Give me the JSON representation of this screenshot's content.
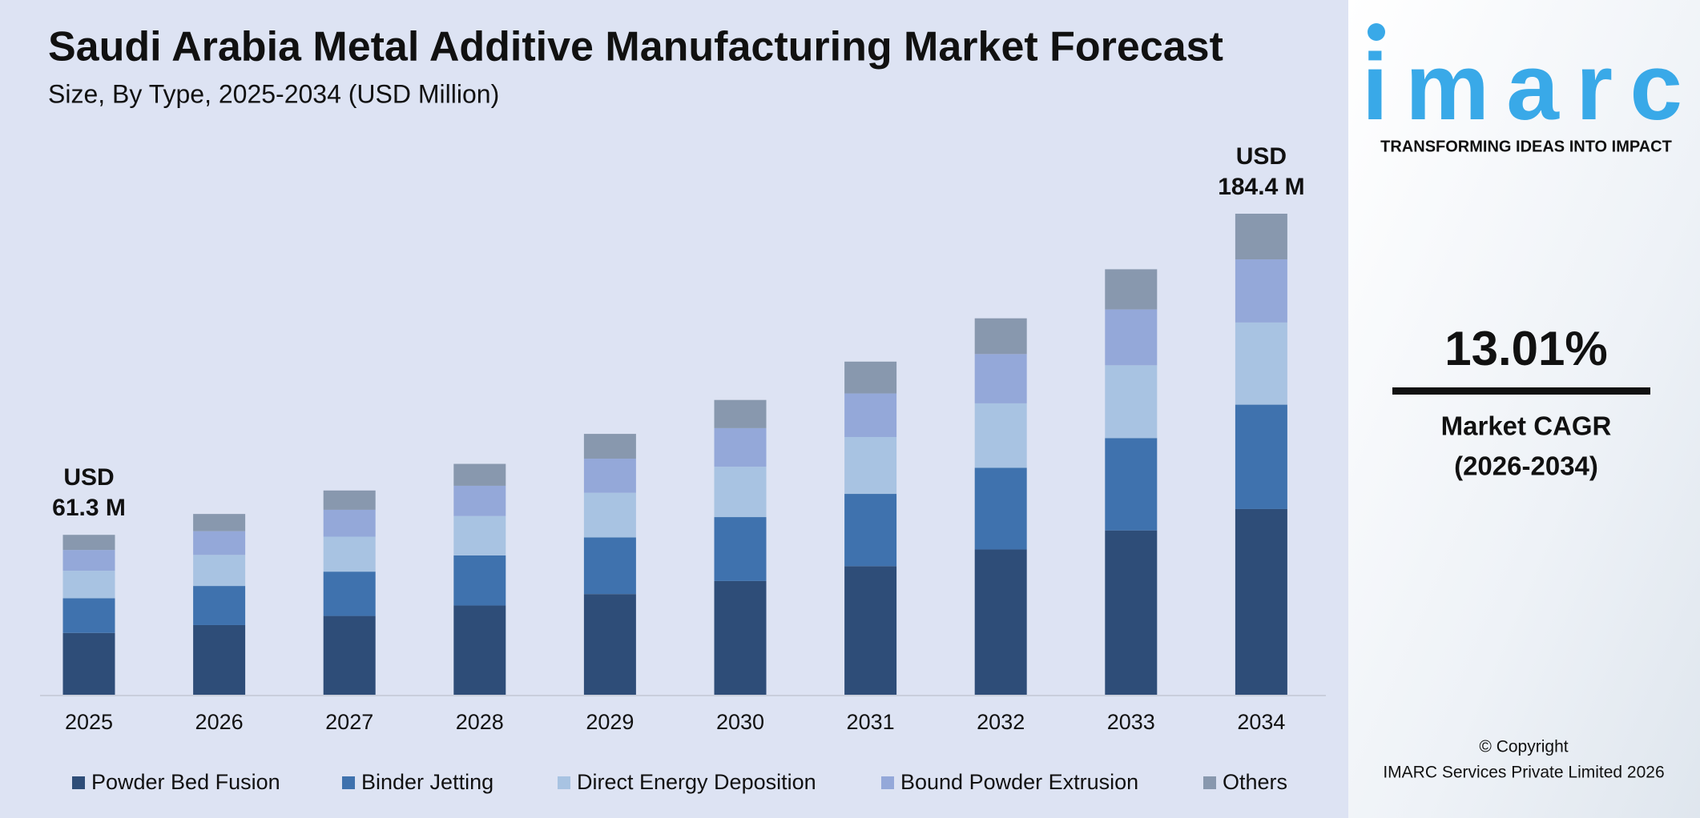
{
  "chart_data": {
    "type": "stacked_bar",
    "title": "Saudi Arabia Metal Additive Manufacturing Market Forecast",
    "subtitle": "Size, By Type, 2025-2034 (USD Million)",
    "categories": [
      "2025",
      "2026",
      "2027",
      "2028",
      "2029",
      "2030",
      "2031",
      "2032",
      "2033",
      "2034"
    ],
    "series": [
      {
        "name": "Powder Bed Fusion",
        "color": "#2e4d78",
        "values": [
          23.7,
          26.7,
          30.2,
          34.2,
          38.6,
          43.6,
          49.3,
          55.7,
          63.0,
          71.2
        ]
      },
      {
        "name": "Binder Jetting",
        "color": "#3f72ae",
        "values": [
          13.3,
          15.0,
          17.0,
          19.2,
          21.7,
          24.5,
          27.7,
          31.3,
          35.4,
          40.0
        ]
      },
      {
        "name": "Direct Energy Deposition",
        "color": "#a8c3e2",
        "values": [
          10.5,
          11.9,
          13.4,
          15.1,
          17.1,
          19.3,
          21.8,
          24.7,
          27.9,
          31.5
        ]
      },
      {
        "name": "Bound Powder Extrusion",
        "color": "#94a8d9",
        "values": [
          8.0,
          9.1,
          10.3,
          11.6,
          13.1,
          14.8,
          16.7,
          18.9,
          21.4,
          24.2
        ]
      },
      {
        "name": "Others",
        "color": "#8898ae",
        "values": [
          5.8,
          6.6,
          7.4,
          8.4,
          9.5,
          10.8,
          12.2,
          13.7,
          15.4,
          17.5
        ]
      }
    ],
    "annotations": [
      [
        "USD",
        "61.3 M"
      ],
      [
        "USD",
        "184.4 M"
      ]
    ]
  },
  "sidebar": {
    "logo": "imarc",
    "tagline": "TRANSFORMING IDEAS INTO IMPACT",
    "cagr_value": "13.01%",
    "cagr_label": [
      "Market CAGR",
      "(2026-2034)"
    ],
    "copyright": [
      "© Copyright",
      "IMARC Services Private Limited 2026"
    ]
  }
}
